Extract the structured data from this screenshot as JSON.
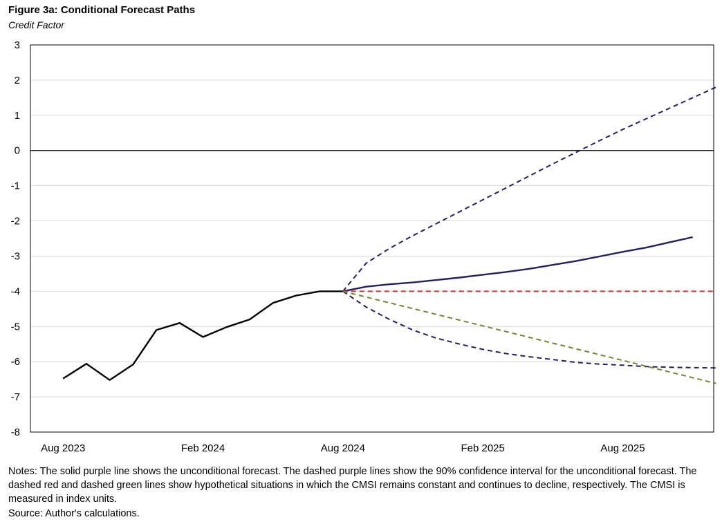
{
  "figure": {
    "title": "Figure 3a: Conditional Forecast Paths",
    "subtitle": "Credit Factor",
    "notes": "Notes: The solid purple line shows the unconditional forecast. The dashed purple lines show the 90% confidence interval for the unconditional forecast. The dashed red and dashed green lines show hypothetical situations in which the CMSI remains constant and continues to decline, respectively. The CMSI is measured in index units.",
    "source": "Source: Author's calculations."
  },
  "colors": {
    "historical": "#000000",
    "forecast": "#24205f",
    "constant": "#c0393b",
    "decline": "#7a8236",
    "grid": "#d9d9d9",
    "zero_line": "#000000"
  },
  "chart_data": {
    "type": "line",
    "title": "Figure 3a: Conditional Forecast Paths",
    "subtitle": "Credit Factor",
    "xlabel": "",
    "ylabel": "",
    "x_tick_labels": [
      "Aug 2023",
      "Feb 2024",
      "Aug 2024",
      "Feb 2025",
      "Aug 2025"
    ],
    "x_tick_months": [
      0,
      6,
      12,
      18,
      24
    ],
    "xlim_months": [
      -1.4,
      27.9
    ],
    "ylim": [
      -8,
      3
    ],
    "y_ticks": [
      3,
      2,
      1,
      0,
      -1,
      -2,
      -3,
      -4,
      -5,
      -6,
      -7,
      -8
    ],
    "grid": true,
    "legend": "none",
    "series": [
      {
        "name": "Historical credit factor",
        "style": "solid",
        "color_key": "historical",
        "x_months": [
          0,
          1,
          2,
          3,
          4,
          5,
          6,
          7,
          8,
          9,
          10,
          11,
          12
        ],
        "values": [
          -6.48,
          -6.06,
          -6.52,
          -6.08,
          -5.1,
          -4.9,
          -5.3,
          -5.02,
          -4.8,
          -4.33,
          -4.12,
          -4.0,
          -4.0
        ]
      },
      {
        "name": "Unconditional forecast",
        "style": "solid",
        "color_key": "forecast",
        "x_months": [
          12,
          13,
          14,
          15,
          16,
          17,
          18,
          19,
          20,
          21,
          22,
          23,
          24,
          25,
          26,
          27
        ],
        "values": [
          -4.0,
          -3.87,
          -3.8,
          -3.75,
          -3.68,
          -3.61,
          -3.53,
          -3.45,
          -3.36,
          -3.25,
          -3.14,
          -3.01,
          -2.88,
          -2.76,
          -2.61,
          -2.46
        ]
      },
      {
        "name": "90% confidence interval (upper)",
        "style": "dashed",
        "color_key": "forecast",
        "x_months": [
          12,
          13,
          14,
          15,
          16,
          17,
          18,
          19,
          20,
          21,
          22,
          23,
          24,
          25,
          26,
          27,
          28
        ],
        "values": [
          -4.0,
          -3.2,
          -2.78,
          -2.42,
          -2.08,
          -1.74,
          -1.4,
          -1.06,
          -0.72,
          -0.38,
          -0.05,
          0.28,
          0.6,
          0.9,
          1.2,
          1.5,
          1.8
        ]
      },
      {
        "name": "90% confidence interval (lower)",
        "style": "dashed",
        "color_key": "forecast",
        "x_months": [
          12,
          13,
          14,
          15,
          16,
          17,
          18,
          19,
          20,
          21,
          22,
          23,
          24,
          25,
          26,
          27,
          28
        ],
        "values": [
          -4.0,
          -4.45,
          -4.8,
          -5.1,
          -5.33,
          -5.5,
          -5.65,
          -5.77,
          -5.86,
          -5.94,
          -6.02,
          -6.07,
          -6.1,
          -6.14,
          -6.16,
          -6.17,
          -6.18
        ]
      },
      {
        "name": "CMSI remains constant",
        "style": "dashed",
        "color_key": "constant",
        "x_months": [
          12,
          28
        ],
        "values": [
          -4.0,
          -4.0
        ]
      },
      {
        "name": "CMSI continues to decline",
        "style": "dashed",
        "color_key": "decline",
        "x_months": [
          12,
          28
        ],
        "values": [
          -4.0,
          -6.62
        ]
      }
    ]
  }
}
